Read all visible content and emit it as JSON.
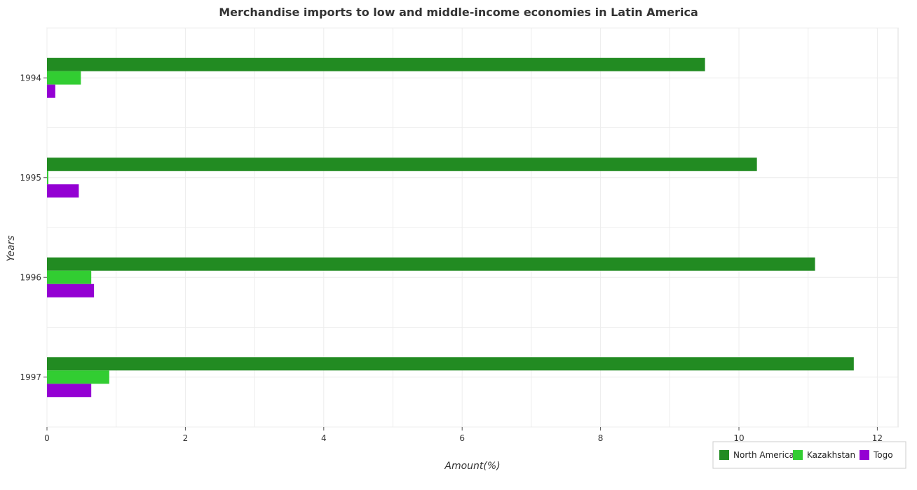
{
  "chart_data": {
    "type": "bar",
    "orientation": "horizontal",
    "title": "Merchandise imports to low and middle-income economies in Latin America",
    "xlabel": "Amount(%)",
    "ylabel": "Years",
    "categories": [
      "1994",
      "1995",
      "1996",
      "1997"
    ],
    "series": [
      {
        "name": "North America",
        "color": "#228B22",
        "values": [
          9.51,
          10.26,
          11.1,
          11.66
        ]
      },
      {
        "name": "Kazakhstan",
        "color": "#32CD32",
        "values": [
          0.49,
          0.02,
          0.64,
          0.9
        ]
      },
      {
        "name": "Togo",
        "color": "#9400D3",
        "values": [
          0.12,
          0.46,
          0.68,
          0.64
        ]
      }
    ],
    "xlim": [
      0,
      12.3
    ],
    "xticks": [
      0,
      2,
      4,
      6,
      8,
      10,
      12
    ],
    "grid": true,
    "legend_position": "bottom-right"
  }
}
